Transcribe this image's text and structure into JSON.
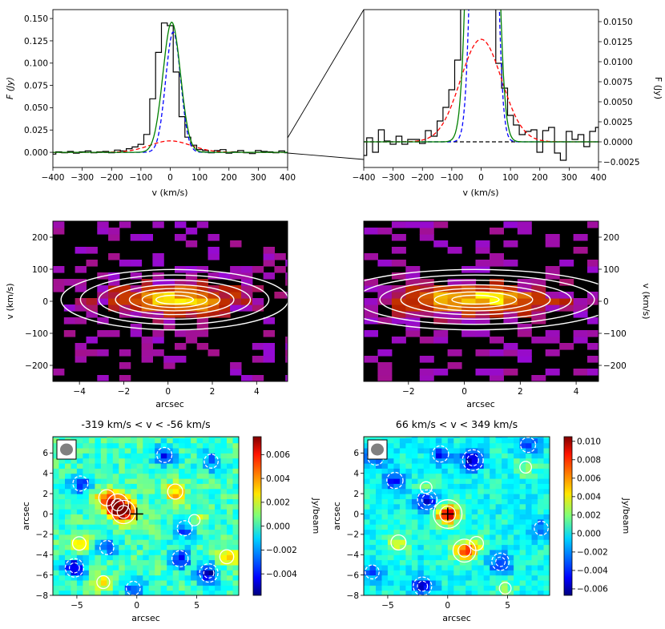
{
  "chart_data": [
    {
      "type": "line",
      "panel": "top-left spectrum",
      "xlabel": "v (km/s)",
      "ylabel": "F (Jy)",
      "xlim": [
        -400,
        400
      ],
      "ylim": [
        -0.017,
        0.16
      ],
      "xticks": [
        -400,
        -300,
        -200,
        -100,
        0,
        100,
        200,
        300,
        400
      ],
      "yticks": [
        "0.000",
        "0.025",
        "0.050",
        "0.075",
        "0.100",
        "0.125",
        "0.150"
      ],
      "series": [
        {
          "name": "observed spectrum (black step)",
          "color": "#000000",
          "x": [
            -400,
            -380,
            -360,
            -340,
            -320,
            -300,
            -280,
            -260,
            -240,
            -220,
            -200,
            -180,
            -160,
            -140,
            -120,
            -100,
            -80,
            -60,
            -40,
            -20,
            0,
            20,
            40,
            60,
            80,
            100,
            120,
            140,
            160,
            180,
            200,
            220,
            240,
            260,
            280,
            300,
            320,
            340,
            360,
            380,
            400
          ],
          "y": [
            -0.002,
            0.0005,
            -0.0005,
            0.001,
            -0.001,
            0.0005,
            0.0015,
            -0.0005,
            0.0005,
            0.001,
            -0.0005,
            0.0025,
            0.0015,
            0.004,
            0.006,
            0.009,
            0.02,
            0.06,
            0.112,
            0.145,
            0.142,
            0.09,
            0.04,
            0.017,
            0.008,
            0.003,
            0.002,
            -0.0005,
            0.002,
            0.003,
            -0.001,
            0.0005,
            0.002,
            -0.0005,
            -0.0015,
            0.002,
            0.001,
            0.0005,
            -0.0005,
            0.0015,
            -0.0005
          ]
        },
        {
          "name": "total fit (green)",
          "color": "#008000",
          "peak": 0.146,
          "center": 5,
          "fwhm": 70
        },
        {
          "name": "narrow component (blue dashed)",
          "color": "#0000ff",
          "peak": 0.135,
          "center": 10,
          "fwhm": 60
        },
        {
          "name": "broad component (red dashed)",
          "color": "#ff0000",
          "peak": 0.0128,
          "center": 0,
          "fwhm": 165
        }
      ]
    },
    {
      "type": "line",
      "panel": "top-right zoomed spectrum",
      "xlabel": "v (km/s)",
      "ylabel": "F (Jy)",
      "xlim": [
        -400,
        400
      ],
      "ylim": [
        -0.0032,
        0.0165
      ],
      "xticks": [
        -400,
        -300,
        -200,
        -100,
        0,
        100,
        200,
        300,
        400
      ],
      "yticks": [
        "−0.0025",
        "0.0000",
        "0.0025",
        "0.0050",
        "0.0075",
        "0.0100",
        "0.0125",
        "0.0150"
      ],
      "zero_line": "black dashed at 0"
    },
    {
      "type": "heatmap",
      "panel": "middle-left position-velocity diagram",
      "xlabel": "arcsec",
      "ylabel": "v (km/s)",
      "xlim": [
        -5.2,
        5.4
      ],
      "ylim": [
        -250,
        250
      ],
      "xticks": [
        -4,
        -2,
        0,
        2,
        4
      ],
      "yticks": [
        -200,
        -100,
        0,
        100,
        200
      ],
      "colormap": "gnuplot",
      "contours": "white",
      "peak_position": [
        0.3,
        5
      ]
    },
    {
      "type": "heatmap",
      "panel": "middle-right position-velocity diagram",
      "xlabel": "arcsec",
      "ylabel": "v (km/s)",
      "xlim": [
        -3.6,
        4.8
      ],
      "ylim": [
        -250,
        250
      ],
      "xticks": [
        -2,
        0,
        2,
        4
      ],
      "yticks": [
        -200,
        -100,
        0,
        100,
        200
      ],
      "colormap": "gnuplot",
      "contours": "white",
      "peak_position": [
        0.4,
        5
      ]
    },
    {
      "type": "heatmap",
      "panel": "bottom-left channel map",
      "title": "-319 km/s < v < -56 km/s",
      "xlabel": "arcsec",
      "ylabel": "arcsec",
      "xlim": [
        -7,
        8.5
      ],
      "ylim": [
        -8,
        7.6
      ],
      "xticks": [
        -5,
        0,
        5
      ],
      "yticks": [
        -8,
        -6,
        -4,
        -2,
        0,
        2,
        4,
        6
      ],
      "colorbar": {
        "label": "Jy/beam",
        "range": [
          -0.0058,
          0.0075
        ],
        "ticks": [
          "−0.004",
          "−0.002",
          "0.000",
          "0.002",
          "0.004",
          "0.006"
        ]
      },
      "colormap": "jet",
      "blobs": [
        {
          "x": -1.6,
          "y": 0.9,
          "value": 0.0065
        },
        {
          "x": -1.1,
          "y": 0.2,
          "value": 0.0072
        },
        {
          "x": -2.5,
          "y": 1.6,
          "value": 0.004
        },
        {
          "x": 3.2,
          "y": 2.2,
          "value": 0.0035
        },
        {
          "x": 7.5,
          "y": -4.2,
          "value": 0.003
        },
        {
          "x": -4.8,
          "y": -2.9,
          "value": 0.0028
        },
        {
          "x": 4.8,
          "y": -0.6,
          "value": 0.0018
        },
        {
          "x": -2.8,
          "y": -6.7,
          "value": 0.0025
        },
        {
          "x": -5.2,
          "y": -5.3,
          "value": -0.005
        },
        {
          "x": 6.0,
          "y": -5.8,
          "value": -0.005
        },
        {
          "x": 3.6,
          "y": -4.4,
          "value": -0.004
        },
        {
          "x": -4.7,
          "y": 3.0,
          "value": -0.0035
        },
        {
          "x": 2.3,
          "y": 5.8,
          "value": -0.0035
        },
        {
          "x": -2.5,
          "y": -3.3,
          "value": -0.003
        },
        {
          "x": 6.2,
          "y": 5.2,
          "value": -0.003
        },
        {
          "x": -0.3,
          "y": -7.3,
          "value": -0.003
        },
        {
          "x": 4.0,
          "y": -1.4,
          "value": -0.0035
        }
      ],
      "marker": {
        "type": "cross",
        "x": 0,
        "y": 0
      },
      "beam_inset": "grey ellipse, top-left"
    },
    {
      "type": "heatmap",
      "panel": "bottom-right channel map",
      "title": "66 km/s < v < 349 km/s",
      "xlabel": "arcsec",
      "ylabel": "arcsec",
      "xlim": [
        -7,
        8.5
      ],
      "ylim": [
        -8,
        7.6
      ],
      "xticks": [
        -5,
        0,
        5
      ],
      "yticks": [
        -8,
        -6,
        -4,
        -2,
        0,
        2,
        4,
        6
      ],
      "colorbar": {
        "label": "Jy/beam",
        "range": [
          -0.0067,
          0.0105
        ],
        "ticks": [
          "−0.006",
          "−0.004",
          "−0.002",
          "0.000",
          "0.002",
          "0.004",
          "0.006",
          "0.008",
          "0.010"
        ]
      },
      "colormap": "jet",
      "blobs": [
        {
          "x": 0.0,
          "y": 0.0,
          "value": 0.0095
        },
        {
          "x": 1.4,
          "y": -3.6,
          "value": 0.007
        },
        {
          "x": 2.4,
          "y": -2.9,
          "value": 0.003
        },
        {
          "x": -4.1,
          "y": -2.8,
          "value": 0.0035
        },
        {
          "x": -1.8,
          "y": 2.6,
          "value": 0.002
        },
        {
          "x": 6.5,
          "y": 4.6,
          "value": 0.002
        },
        {
          "x": 4.8,
          "y": -7.3,
          "value": 0.002
        },
        {
          "x": -1.7,
          "y": 1.4,
          "value": -0.0055
        },
        {
          "x": 2.1,
          "y": 5.3,
          "value": -0.006
        },
        {
          "x": -2.1,
          "y": -7.1,
          "value": -0.005
        },
        {
          "x": 4.4,
          "y": -4.7,
          "value": -0.0045
        },
        {
          "x": -6.0,
          "y": 5.6,
          "value": -0.004
        },
        {
          "x": -4.4,
          "y": 3.3,
          "value": -0.004
        },
        {
          "x": -0.6,
          "y": 5.9,
          "value": -0.004
        },
        {
          "x": 7.8,
          "y": -1.4,
          "value": -0.003
        },
        {
          "x": -6.3,
          "y": -5.7,
          "value": -0.003
        },
        {
          "x": 6.7,
          "y": 6.8,
          "value": -0.0035
        }
      ],
      "marker": {
        "type": "cross",
        "x": 0,
        "y": 0
      },
      "beam_inset": "grey ellipse, top-left"
    }
  ]
}
